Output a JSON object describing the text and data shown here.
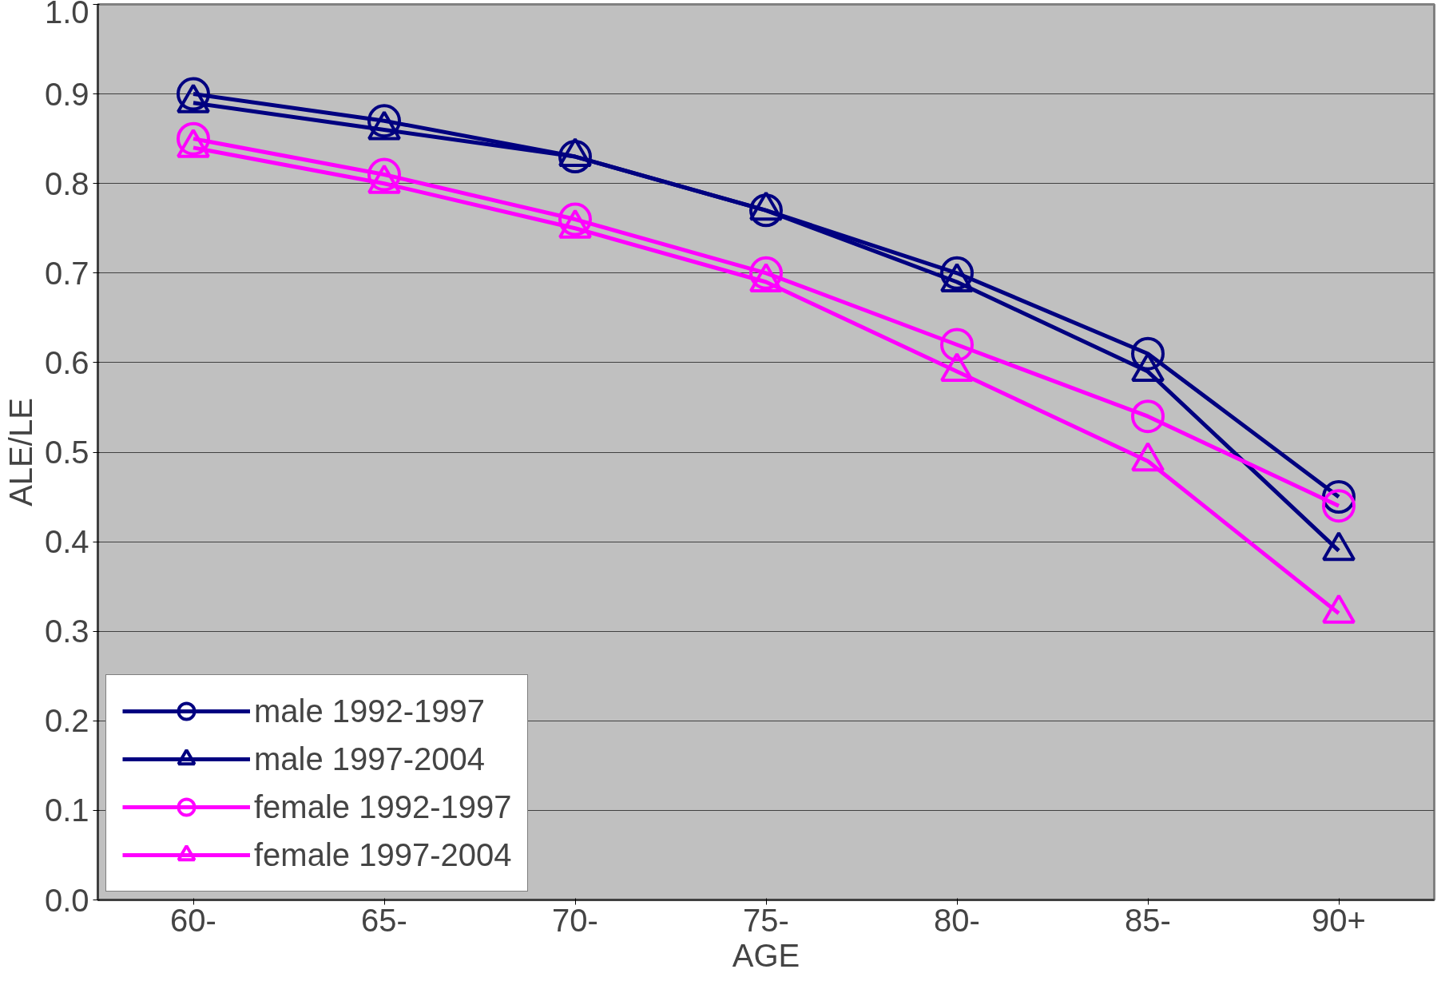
{
  "chart_data": {
    "type": "line",
    "xlabel": "AGE",
    "ylabel": "ALE/LE",
    "categories": [
      "60-",
      "65-",
      "70-",
      "75-",
      "80-",
      "85-",
      "90+"
    ],
    "series": [
      {
        "name": "male 1992-1997",
        "color": "#000080",
        "marker": "circle",
        "values": [
          0.9,
          0.87,
          0.83,
          0.77,
          0.7,
          0.61,
          0.45
        ]
      },
      {
        "name": "male 1997-2004",
        "color": "#000080",
        "marker": "triangle",
        "values": [
          0.89,
          0.86,
          0.83,
          0.77,
          0.69,
          0.59,
          0.39
        ]
      },
      {
        "name": "female 1992-1997",
        "color": "#ff00ff",
        "marker": "circle",
        "values": [
          0.85,
          0.81,
          0.76,
          0.7,
          0.62,
          0.54,
          0.44
        ]
      },
      {
        "name": "female 1997-2004",
        "color": "#ff00ff",
        "marker": "triangle",
        "values": [
          0.84,
          0.8,
          0.75,
          0.69,
          0.59,
          0.49,
          0.32
        ]
      }
    ],
    "ylim": [
      0,
      1.0
    ],
    "yticks": [
      {
        "value": 0,
        "label": "0.0"
      },
      0.1,
      0.2,
      0.3,
      0.4,
      0.5,
      0.6,
      0.7,
      0.8,
      0.9,
      {
        "value": 1.0,
        "label": "1.0"
      }
    ],
    "grid": "y",
    "legend": "bottom left",
    "line_style": "solid"
  }
}
